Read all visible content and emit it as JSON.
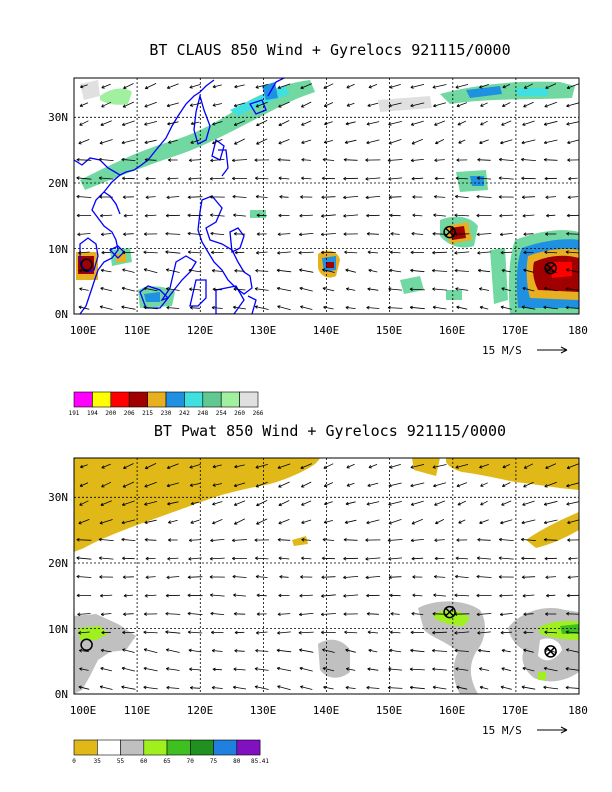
{
  "chart_data": [
    {
      "type": "map",
      "title": "BT CLAUS 850 Wind + Gyrelocs 921115/0000",
      "x_ticks": [
        "100E",
        "110E",
        "120E",
        "130E",
        "140E",
        "150E",
        "160E",
        "170E",
        "180"
      ],
      "y_ticks": [
        "0N",
        "10N",
        "20N",
        "30N"
      ],
      "xlim": [
        100,
        180
      ],
      "ylim": [
        0,
        36
      ],
      "reference_vector_label": "15 M/S",
      "colorbar": {
        "labels": [
          "191",
          "194",
          "200",
          "206",
          "215",
          "230",
          "242",
          "248",
          "254",
          "260",
          "266"
        ],
        "colors": [
          "#ff00ff",
          "#ffff00",
          "#ff0000",
          "#a00000",
          "#e8b020",
          "#2090e0",
          "#40e0e0",
          "#60c890",
          "#a0f0a0",
          "#e0e0e0"
        ]
      },
      "gyre_locations": [
        {
          "lon": 159.5,
          "lat": 12.5,
          "symbol": "circled-x"
        },
        {
          "lon": 175.5,
          "lat": 7.0,
          "symbol": "circled-x"
        },
        {
          "lon": 102.0,
          "lat": 7.5,
          "symbol": "circle"
        }
      ]
    },
    {
      "type": "map",
      "title": "BT Pwat 850 Wind + Gyrelocs 921115/0000",
      "x_ticks": [
        "100E",
        "110E",
        "120E",
        "130E",
        "140E",
        "150E",
        "160E",
        "170E",
        "180"
      ],
      "y_ticks": [
        "0N",
        "10N",
        "20N",
        "30N"
      ],
      "xlim": [
        100,
        180
      ],
      "ylim": [
        0,
        36
      ],
      "reference_vector_label": "15 M/S",
      "colorbar": {
        "labels": [
          "0",
          "35",
          "55",
          "60",
          "65",
          "70",
          "75",
          "80",
          "85.41"
        ],
        "colors": [
          "#e0b818",
          "#ffffff",
          "#c0c0c0",
          "#a0f020",
          "#40c020",
          "#209020",
          "#2080e0",
          "#8010c0"
        ]
      },
      "gyre_locations": [
        {
          "lon": 159.5,
          "lat": 12.5,
          "symbol": "circled-x"
        },
        {
          "lon": 175.5,
          "lat": 6.5,
          "symbol": "circled-x"
        },
        {
          "lon": 102.0,
          "lat": 7.5,
          "symbol": "circle"
        }
      ]
    }
  ]
}
